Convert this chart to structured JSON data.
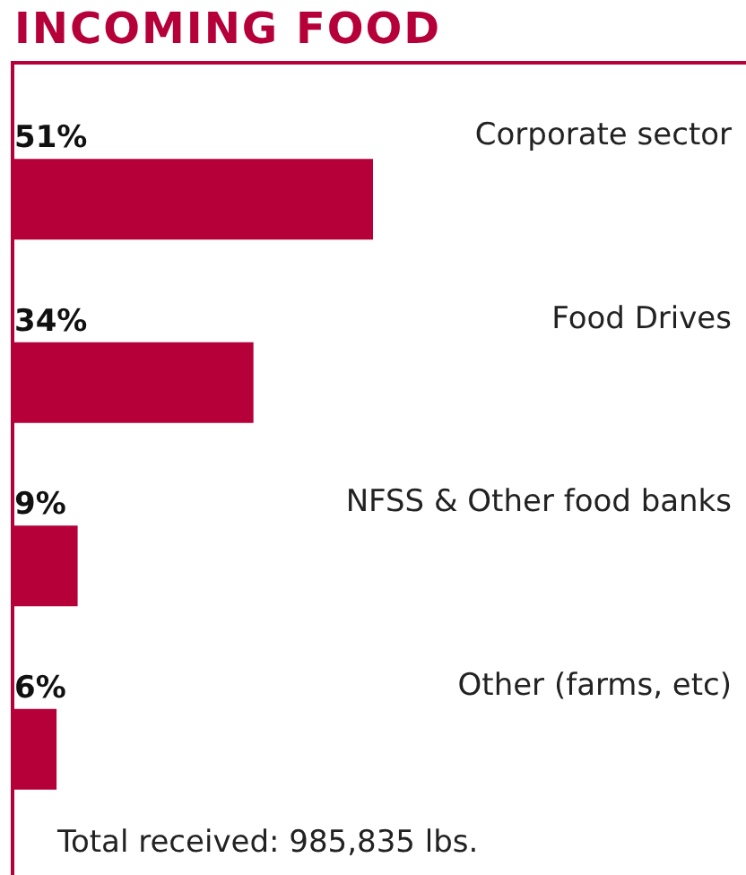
{
  "chart_data": {
    "type": "bar",
    "orientation": "horizontal",
    "title": "INCOMING FOOD",
    "categories": [
      "Corporate sector",
      "Food Drives",
      "NFSS & Other food banks",
      "Other (farms, etc)"
    ],
    "values": [
      51,
      34,
      9,
      6
    ],
    "value_labels": [
      "51%",
      "34%",
      "9%",
      "6%"
    ],
    "color": "#b5003a",
    "annotations": [
      "Total received:  985,835 lbs."
    ]
  }
}
